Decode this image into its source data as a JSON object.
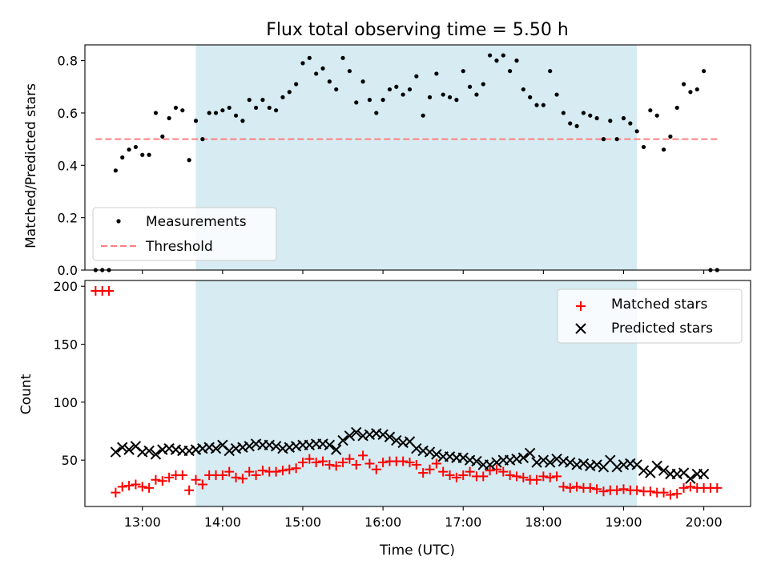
{
  "chart_data": [
    {
      "type": "scatter",
      "title": "Flux total observing time = 5.50 h",
      "xlabel": "",
      "ylabel": "Matched/Predicted stars",
      "ylim": [
        0.0,
        0.86
      ],
      "yticks": [
        "0.0",
        "0.2",
        "0.4",
        "0.6",
        "0.8"
      ],
      "xlim": [
        "12:17",
        "20:35"
      ],
      "grid": false,
      "legend_placement": "lower-left",
      "observing_window": [
        "13:40",
        "19:10"
      ],
      "observing_window_color": "#add8e6",
      "threshold": {
        "name": "Threshold",
        "value": 0.5,
        "color": "#ff7f7f",
        "style": "dashed",
        "x_range": [
          "12:25",
          "20:10"
        ]
      },
      "series": [
        {
          "name": "Measurements",
          "color": "#000000",
          "marker": "dot",
          "x": [
            "12:25",
            "12:30",
            "12:35",
            "12:40",
            "12:45",
            "12:50",
            "12:55",
            "13:00",
            "13:05",
            "13:10",
            "13:15",
            "13:20",
            "13:25",
            "13:30",
            "13:35",
            "13:40",
            "13:45",
            "13:50",
            "13:55",
            "14:00",
            "14:05",
            "14:10",
            "14:15",
            "14:20",
            "14:25",
            "14:30",
            "14:35",
            "14:40",
            "14:45",
            "14:50",
            "14:55",
            "15:00",
            "15:05",
            "15:10",
            "15:15",
            "15:20",
            "15:25",
            "15:30",
            "15:35",
            "15:40",
            "15:45",
            "15:50",
            "15:55",
            "16:00",
            "16:05",
            "16:10",
            "16:15",
            "16:20",
            "16:25",
            "16:30",
            "16:35",
            "16:40",
            "16:45",
            "16:50",
            "16:55",
            "17:00",
            "17:05",
            "17:10",
            "17:15",
            "17:20",
            "17:25",
            "17:30",
            "17:35",
            "17:40",
            "17:45",
            "17:50",
            "17:55",
            "18:00",
            "18:05",
            "18:10",
            "18:15",
            "18:20",
            "18:25",
            "18:30",
            "18:35",
            "18:40",
            "18:45",
            "18:50",
            "18:55",
            "19:00",
            "19:05",
            "19:10",
            "19:15",
            "19:20",
            "19:25",
            "19:30",
            "19:35",
            "19:40",
            "19:45",
            "19:50",
            "19:55",
            "20:00",
            "20:05",
            "20:10"
          ],
          "y": [
            0.0,
            0.0,
            0.0,
            0.38,
            0.43,
            0.46,
            0.47,
            0.44,
            0.44,
            0.6,
            0.51,
            0.58,
            0.62,
            0.61,
            0.42,
            0.57,
            0.5,
            0.6,
            0.6,
            0.61,
            0.62,
            0.59,
            0.57,
            0.65,
            0.62,
            0.65,
            0.62,
            0.61,
            0.66,
            0.68,
            0.71,
            0.79,
            0.81,
            0.75,
            0.77,
            0.72,
            0.69,
            0.81,
            0.76,
            0.64,
            0.72,
            0.65,
            0.6,
            0.65,
            0.69,
            0.7,
            0.67,
            0.69,
            0.74,
            0.59,
            0.66,
            0.75,
            0.67,
            0.66,
            0.65,
            0.76,
            0.7,
            0.67,
            0.71,
            0.82,
            0.8,
            0.82,
            0.76,
            0.8,
            0.69,
            0.66,
            0.63,
            0.63,
            0.76,
            0.67,
            0.6,
            0.56,
            0.55,
            0.6,
            0.59,
            0.58,
            0.5,
            0.57,
            0.5,
            0.58,
            0.56,
            0.53,
            0.47,
            0.61,
            0.59,
            0.46,
            0.51,
            0.62,
            0.71,
            0.68,
            0.69,
            0.76,
            0.0,
            0.0
          ]
        }
      ]
    },
    {
      "type": "scatter",
      "title": "",
      "xlabel": "Time (UTC)",
      "ylabel": "Count",
      "ylim": [
        10,
        205
      ],
      "yticks": [
        "50",
        "100",
        "150",
        "200"
      ],
      "xlim": [
        "12:17",
        "20:35"
      ],
      "xticks": [
        "13:00",
        "14:00",
        "15:00",
        "16:00",
        "17:00",
        "18:00",
        "19:00",
        "20:00"
      ],
      "grid": false,
      "legend_placement": "top-right",
      "observing_window": [
        "13:40",
        "19:10"
      ],
      "observing_window_color": "#add8e6",
      "series": [
        {
          "name": "Matched stars",
          "color": "#ff0000",
          "marker": "plus",
          "x": [
            "12:25",
            "12:30",
            "12:35",
            "12:40",
            "12:45",
            "12:50",
            "12:55",
            "13:00",
            "13:05",
            "13:10",
            "13:15",
            "13:20",
            "13:25",
            "13:30",
            "13:35",
            "13:40",
            "13:45",
            "13:50",
            "13:55",
            "14:00",
            "14:05",
            "14:10",
            "14:15",
            "14:20",
            "14:25",
            "14:30",
            "14:35",
            "14:40",
            "14:45",
            "14:50",
            "14:55",
            "15:00",
            "15:05",
            "15:10",
            "15:15",
            "15:20",
            "15:25",
            "15:30",
            "15:35",
            "15:40",
            "15:45",
            "15:50",
            "15:55",
            "16:00",
            "16:05",
            "16:10",
            "16:15",
            "16:20",
            "16:25",
            "16:30",
            "16:35",
            "16:40",
            "16:45",
            "16:50",
            "16:55",
            "17:00",
            "17:05",
            "17:10",
            "17:15",
            "17:20",
            "17:25",
            "17:30",
            "17:35",
            "17:40",
            "17:45",
            "17:50",
            "17:55",
            "18:00",
            "18:05",
            "18:10",
            "18:15",
            "18:20",
            "18:25",
            "18:30",
            "18:35",
            "18:40",
            "18:45",
            "18:50",
            "18:55",
            "19:00",
            "19:05",
            "19:10",
            "19:15",
            "19:20",
            "19:25",
            "19:30",
            "19:35",
            "19:40",
            "19:45",
            "19:50",
            "19:55",
            "20:00",
            "20:05",
            "20:10"
          ],
          "y": [
            196,
            196,
            196,
            22,
            27,
            28,
            29,
            27,
            26,
            33,
            32,
            35,
            37,
            37,
            24,
            33,
            29,
            37,
            37,
            37,
            40,
            35,
            34,
            40,
            37,
            41,
            40,
            40,
            41,
            42,
            43,
            48,
            51,
            48,
            49,
            46,
            45,
            48,
            51,
            46,
            54,
            47,
            42,
            48,
            49,
            49,
            49,
            48,
            46,
            39,
            42,
            47,
            40,
            37,
            35,
            37,
            40,
            36,
            36,
            41,
            42,
            40,
            37,
            36,
            35,
            33,
            33,
            36,
            35,
            36,
            27,
            26,
            27,
            26,
            26,
            25,
            23,
            24,
            24,
            25,
            24,
            24,
            23,
            23,
            22,
            22,
            20,
            21,
            26,
            27,
            26,
            26,
            26,
            26
          ],
          "note": ""
        },
        {
          "name": "Predicted stars",
          "color": "#000000",
          "marker": "x",
          "x": [
            "12:40",
            "12:45",
            "12:50",
            "12:55",
            "13:00",
            "13:05",
            "13:10",
            "13:15",
            "13:20",
            "13:25",
            "13:30",
            "13:35",
            "13:40",
            "13:45",
            "13:50",
            "13:55",
            "14:00",
            "14:05",
            "14:10",
            "14:15",
            "14:20",
            "14:25",
            "14:30",
            "14:35",
            "14:40",
            "14:45",
            "14:50",
            "14:55",
            "15:00",
            "15:05",
            "15:10",
            "15:15",
            "15:20",
            "15:25",
            "15:30",
            "15:35",
            "15:40",
            "15:45",
            "15:50",
            "15:55",
            "16:00",
            "16:05",
            "16:10",
            "16:15",
            "16:20",
            "16:25",
            "16:30",
            "16:35",
            "16:40",
            "16:45",
            "16:50",
            "16:55",
            "17:00",
            "17:05",
            "17:10",
            "17:15",
            "17:20",
            "17:25",
            "17:30",
            "17:35",
            "17:40",
            "17:45",
            "17:50",
            "17:55",
            "18:00",
            "18:05",
            "18:10",
            "18:15",
            "18:20",
            "18:25",
            "18:30",
            "18:35",
            "18:40",
            "18:45",
            "18:50",
            "18:55",
            "19:00",
            "19:05",
            "19:10",
            "19:15",
            "19:20",
            "19:25",
            "19:30",
            "19:35",
            "19:40",
            "19:45",
            "19:50",
            "19:55",
            "20:00"
          ],
          "y": [
            57,
            61,
            59,
            62,
            57,
            58,
            55,
            59,
            60,
            59,
            58,
            58,
            59,
            60,
            61,
            60,
            63,
            58,
            60,
            61,
            62,
            64,
            63,
            63,
            62,
            60,
            61,
            62,
            63,
            63,
            64,
            64,
            63,
            59,
            67,
            71,
            74,
            71,
            72,
            73,
            72,
            70,
            67,
            65,
            66,
            60,
            58,
            57,
            55,
            53,
            53,
            52,
            52,
            50,
            49,
            46,
            46,
            48,
            50,
            50,
            51,
            52,
            56,
            48,
            50,
            48,
            51,
            49,
            48,
            46,
            47,
            45,
            46,
            44,
            50,
            44,
            46,
            47,
            46,
            41,
            39,
            45,
            41,
            38,
            38,
            39,
            34,
            38,
            38
          ]
        }
      ]
    }
  ]
}
